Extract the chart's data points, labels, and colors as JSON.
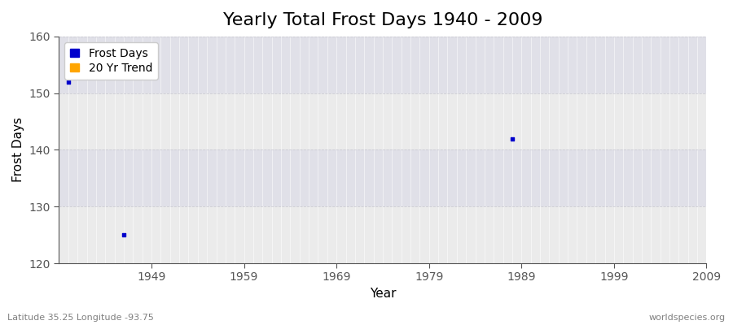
{
  "title": "Yearly Total Frost Days 1940 - 2009",
  "xlabel": "Year",
  "ylabel": "Frost Days",
  "xlim": [
    1939,
    2009
  ],
  "ylim": [
    120,
    160
  ],
  "yticks": [
    120,
    130,
    140,
    150,
    160
  ],
  "xticks": [
    1949,
    1959,
    1969,
    1979,
    1989,
    1999,
    2009
  ],
  "fig_background_color": "#ffffff",
  "plot_bg_color": "#ebebeb",
  "grid_color": "#ffffff",
  "spine_color": "#555555",
  "tick_color": "#555555",
  "frost_days_color": "#0000cc",
  "trend_color": "#ffa500",
  "data_points": [
    {
      "year": 1940,
      "value": 152
    },
    {
      "year": 1946,
      "value": 125
    },
    {
      "year": 1988,
      "value": 142
    }
  ],
  "footnote_left": "Latitude 35.25 Longitude -93.75",
  "footnote_right": "worldspecies.org",
  "title_fontsize": 16,
  "axis_label_fontsize": 11,
  "tick_fontsize": 10,
  "footnote_fontsize": 8,
  "legend_entries": [
    "Frost Days",
    "20 Yr Trend"
  ],
  "band_colors": [
    "#e8e8e8",
    "#e0e0e0"
  ],
  "band_ranges": [
    [
      120,
      130
    ],
    [
      130,
      140
    ],
    [
      140,
      150
    ],
    [
      150,
      160
    ]
  ]
}
